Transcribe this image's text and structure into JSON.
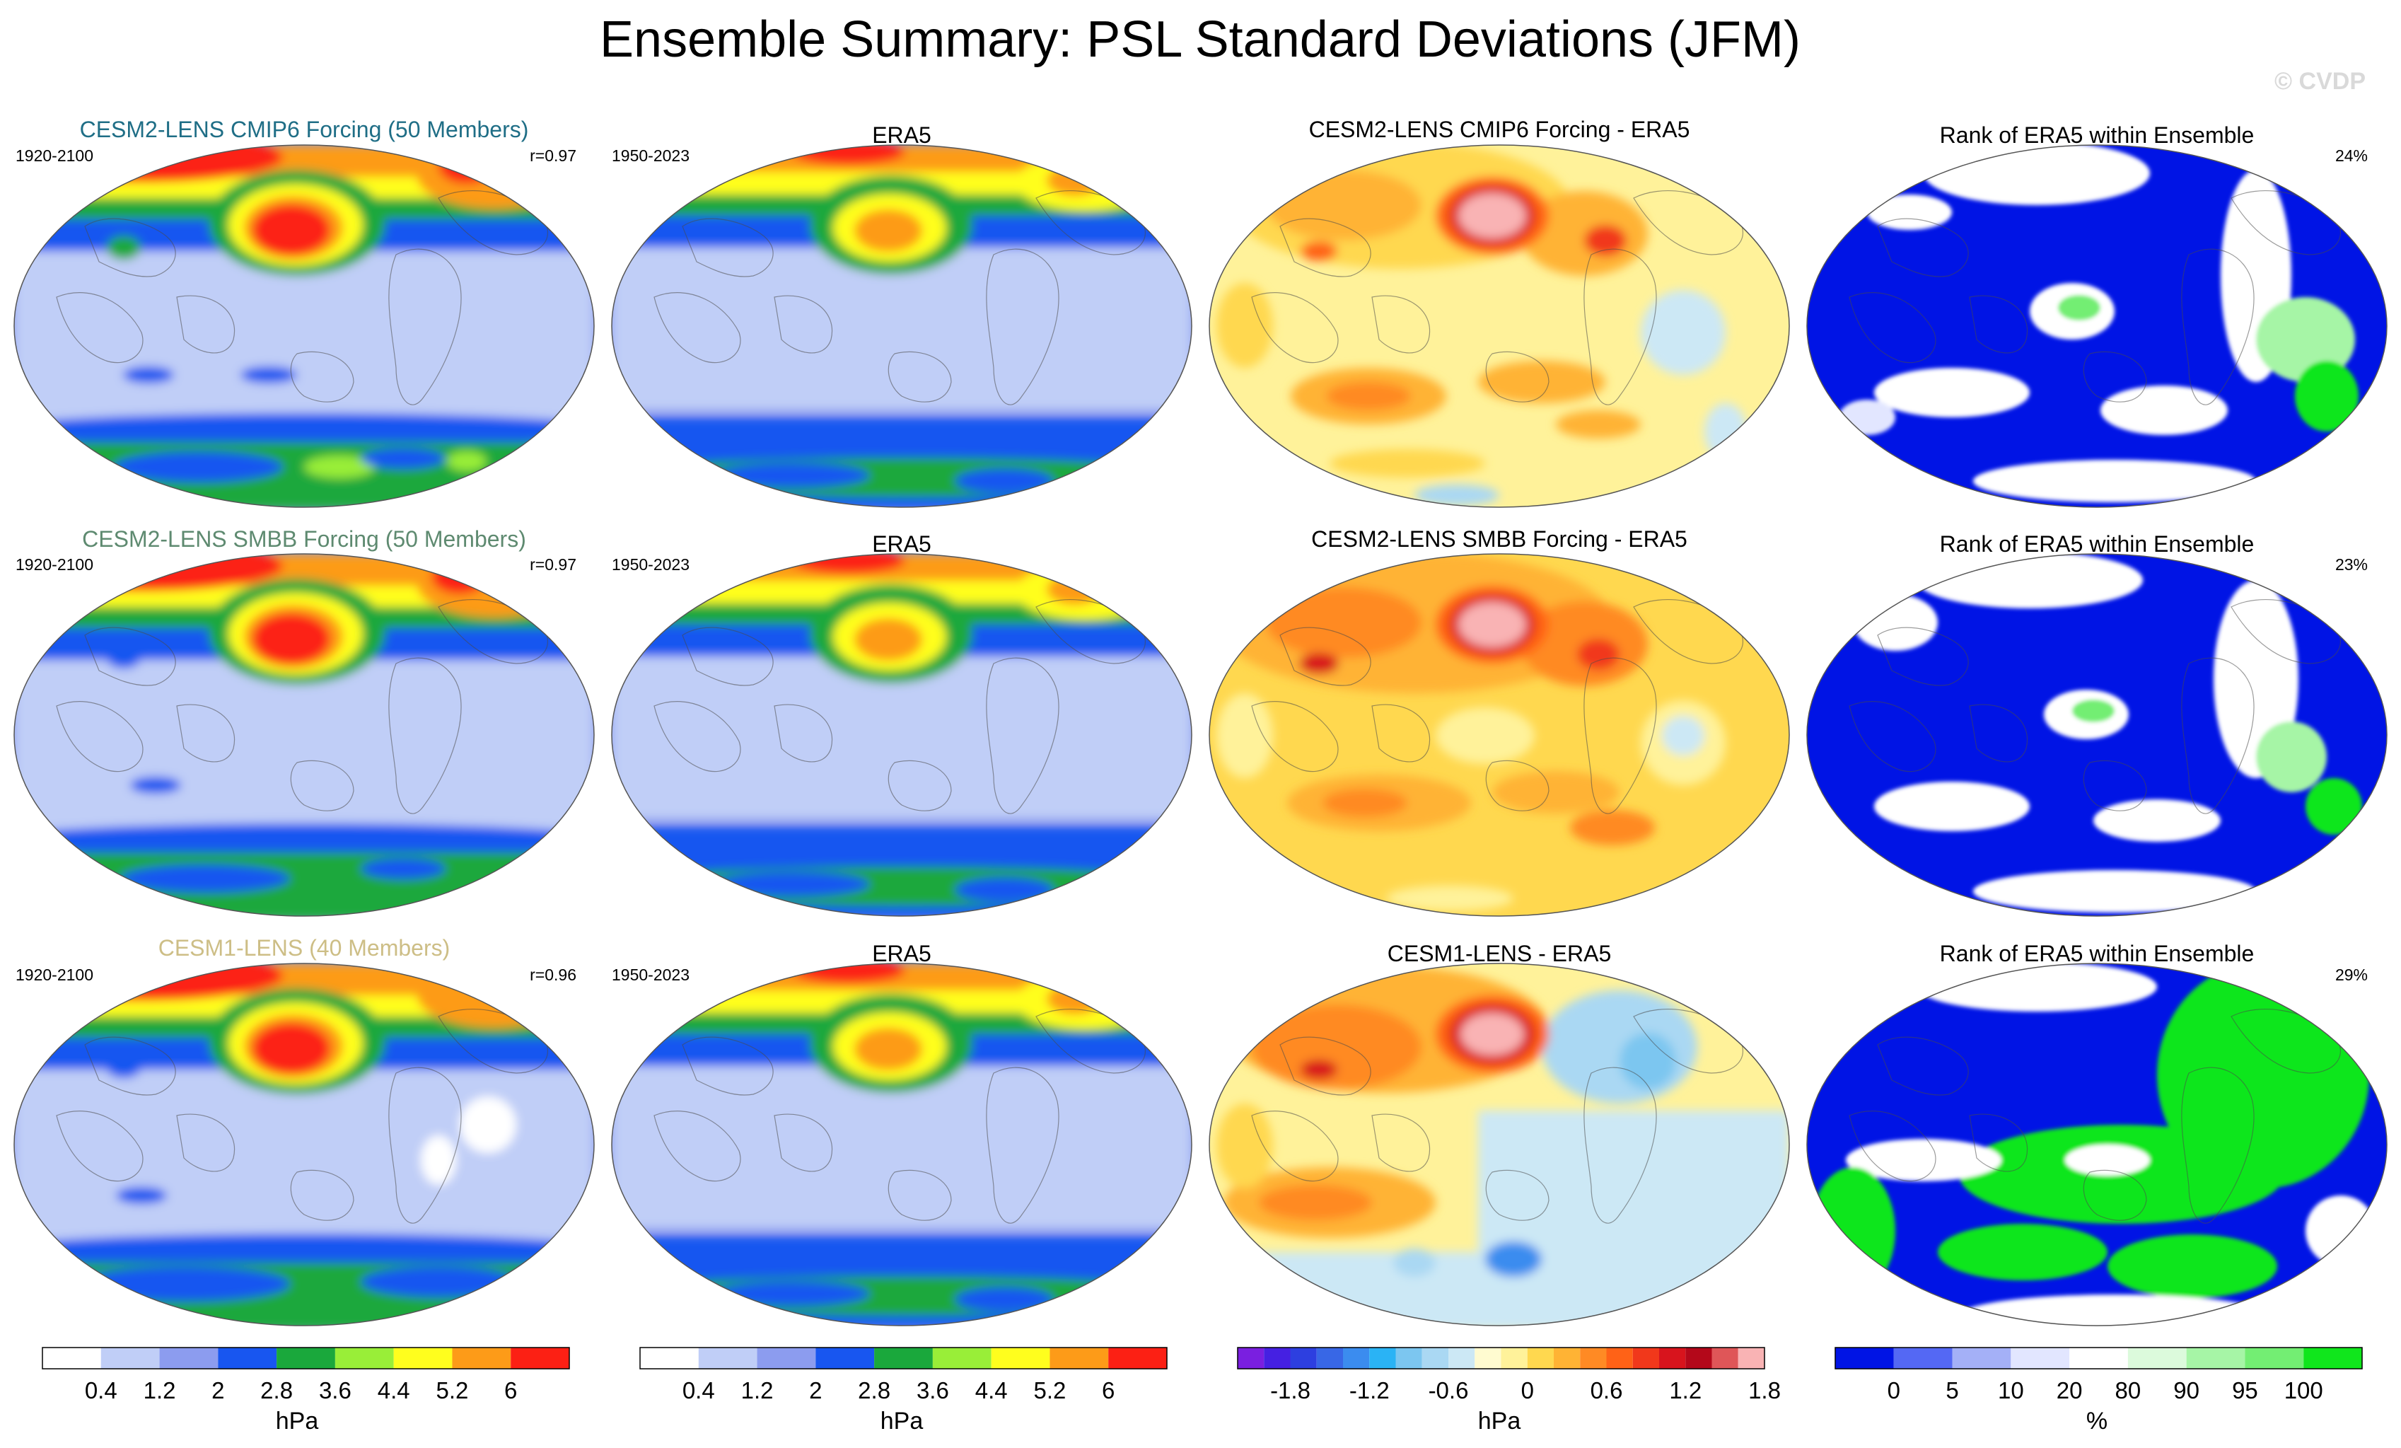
{
  "title": "Ensemble Summary: PSL Standard Deviations (JFM)",
  "watermark": "© CVDP",
  "rows": [
    {
      "ensemble": {
        "title": "CESM2-LENS CMIP6 Forcing (50 Members)",
        "title_color": "#1f6e86",
        "years": "1920-2100",
        "corr": "r=0.97"
      },
      "obs": {
        "title": "ERA5",
        "years": "1950-2023"
      },
      "diff": {
        "title": "CESM2-LENS CMIP6 Forcing - ERA5"
      },
      "rank": {
        "title": "Rank of ERA5 within Ensemble",
        "pct": "24%"
      }
    },
    {
      "ensemble": {
        "title": "CESM2-LENS SMBB Forcing (50 Members)",
        "title_color": "#5e8a70",
        "years": "1920-2100",
        "corr": "r=0.97"
      },
      "obs": {
        "title": "ERA5",
        "years": "1950-2023"
      },
      "diff": {
        "title": "CESM2-LENS SMBB Forcing - ERA5"
      },
      "rank": {
        "title": "Rank of ERA5 within Ensemble",
        "pct": "23%"
      }
    },
    {
      "ensemble": {
        "title": "CESM1-LENS (40 Members)",
        "title_color": "#cdbe86",
        "years": "1920-2100",
        "corr": "r=0.96"
      },
      "obs": {
        "title": "ERA5",
        "years": "1950-2023"
      },
      "diff": {
        "title": "CESM1-LENS - ERA5"
      },
      "rank": {
        "title": "Rank of ERA5 within Ensemble",
        "pct": "29%"
      }
    }
  ],
  "colorbars": [
    {
      "colors": [
        "#ffffff",
        "#c0cef7",
        "#8c9cef",
        "#1856f0",
        "#1aa83c",
        "#99ee38",
        "#fffe1e",
        "#fd9b18",
        "#fc2014"
      ],
      "ticks": [
        "0.4",
        "1.2",
        "2",
        "2.8",
        "3.6",
        "4.4",
        "5.2",
        "6"
      ],
      "label": "hPa"
    },
    {
      "colors": [
        "#ffffff",
        "#c0cef7",
        "#8c9cef",
        "#1856f0",
        "#1aa83c",
        "#99ee38",
        "#fffe1e",
        "#fd9b18",
        "#fc2014"
      ],
      "ticks": [
        "0.4",
        "1.2",
        "2",
        "2.8",
        "3.6",
        "4.4",
        "5.2",
        "6"
      ],
      "label": "hPa"
    },
    {
      "colors": [
        "#7a1fe0",
        "#4520e2",
        "#2d3fe0",
        "#3867e6",
        "#3b8cef",
        "#2ab3f5",
        "#7cc6f0",
        "#aad8f3",
        "#cce8f5",
        "#fffbd0",
        "#fff29a",
        "#ffd84f",
        "#ffb334",
        "#ff8a24",
        "#ff6217",
        "#f1381b",
        "#d8141d",
        "#b4081a",
        "#df5658",
        "#f9b3b4"
      ],
      "ticks": [
        "-1.8",
        "-1.2",
        "-0.6",
        "0",
        "0.6",
        "1.2",
        "1.8"
      ],
      "label": "hPa"
    },
    {
      "colors": [
        "#0014e5",
        "#5468f4",
        "#a4b0f7",
        "#e2e6ff",
        "#ffffff",
        "#dcfadc",
        "#a6f5a6",
        "#73ee73",
        "#10e61c"
      ],
      "ticks": [
        "0",
        "5",
        "10",
        "20",
        "80",
        "90",
        "95",
        "100"
      ],
      "label": "%"
    }
  ]
}
